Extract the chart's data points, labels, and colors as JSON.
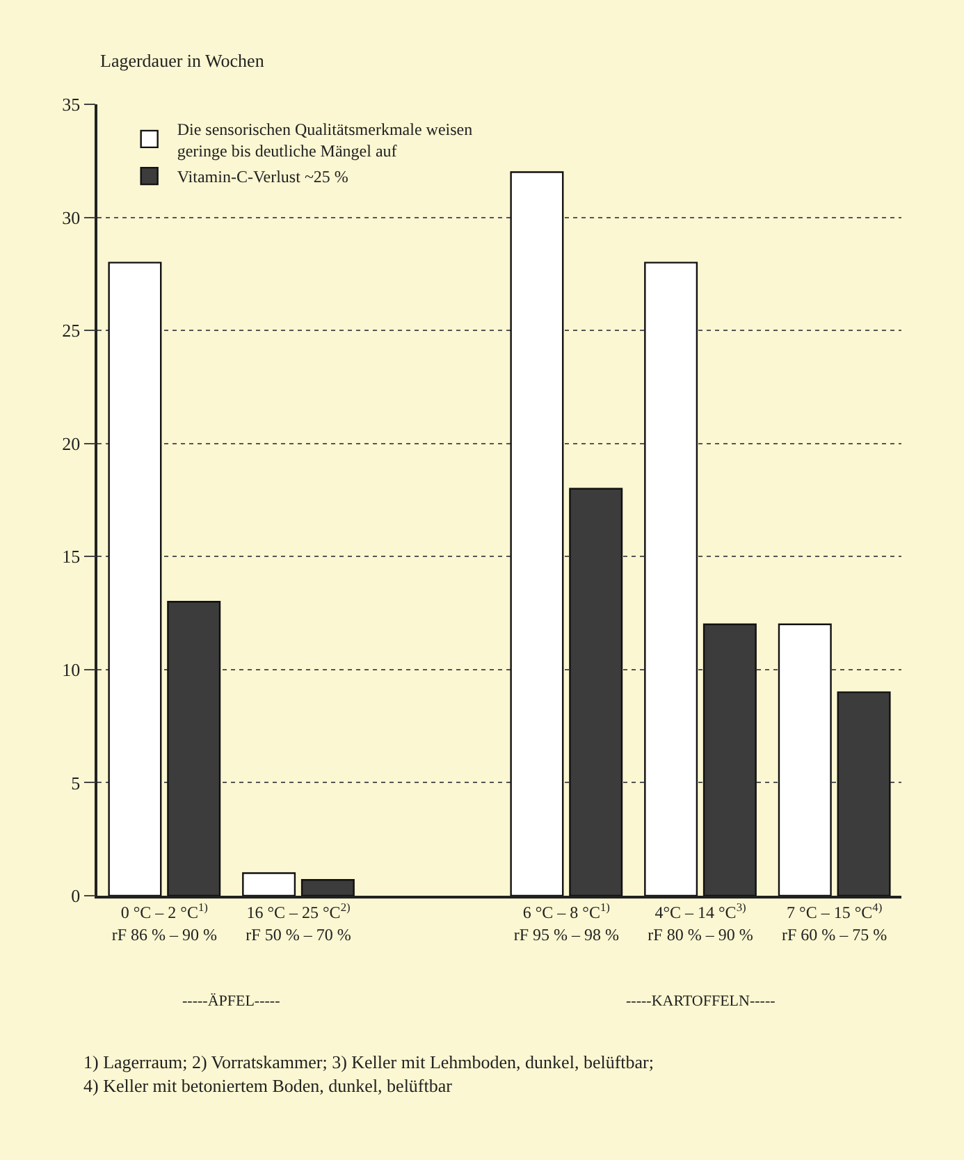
{
  "chart_data": {
    "type": "bar",
    "ylabel": "Lagerdauer in Wochen",
    "categories": [
      "0 °C – 2 °C$^{1)}$\nrF 86 % – 90 %",
      "16 °C – 25 °C$^{2)}$\nrF 50 % – 70 %",
      null,
      "6 °C – 8 °C$^{1)}$\nrF 95 % – 98 %",
      "4°C – 14 °C$^{3)}$\nrF 80 % – 90 %",
      "7 °C – 15 °C$^{4)}$\nrF 60 % – 75 %"
    ],
    "series": [
      {
        "name": "Die sensorischen Qualitätsmerkmale weisen\ngeringe bis deutliche Mängel auf",
        "color": "#ffffff",
        "values": [
          28,
          1,
          null,
          32,
          28,
          12
        ]
      },
      {
        "name": "Vitamin-C-Verlust ~25 %",
        "color": "#3c3c3c",
        "values": [
          13,
          0.7,
          null,
          18,
          12,
          9
        ]
      }
    ],
    "ylim": [
      0,
      35
    ],
    "yticks": [
      0,
      5,
      10,
      15,
      20,
      25,
      30,
      35
    ],
    "grid": "y",
    "legend": "top left",
    "annotations": [
      "-----ÄPFEL-----",
      "-----KARTOFFELN-----",
      "1) Lagerraum; 2) Vorratskammer; 3) Keller mit Lehmboden, dunkel, belüftbar;\n4) Keller mit betoniertem Boden, dunkel, belüftbar"
    ]
  }
}
